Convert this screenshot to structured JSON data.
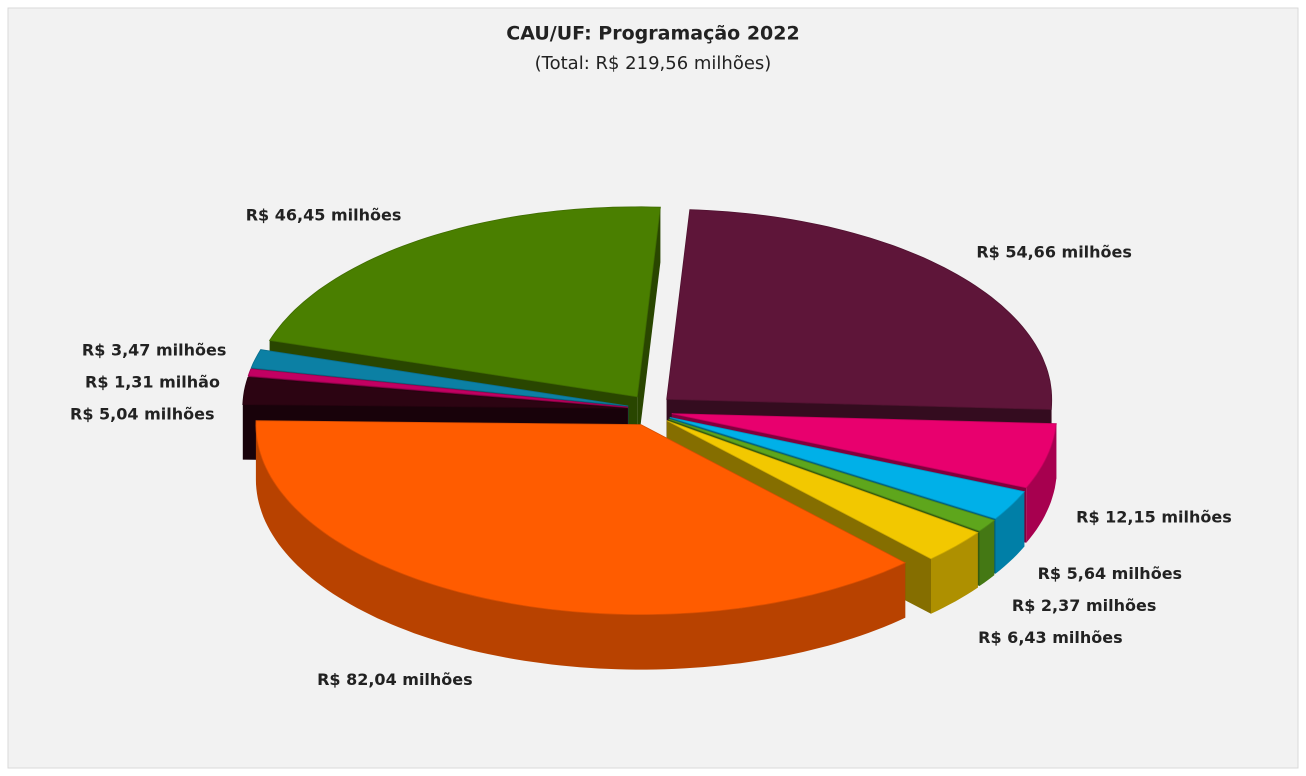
{
  "chart_data": {
    "type": "pie",
    "title": "CAU/UF: Programação 2022",
    "subtitle": "(Total: R$ 219,56 milhões)",
    "values": [
      54.66,
      12.15,
      5.64,
      2.37,
      6.43,
      82.04,
      5.04,
      1.31,
      3.47,
      46.45
    ],
    "value_labels": [
      "R$ 54,66 milhões",
      "R$ 12,15 milhões",
      "R$ 5,64 milhões",
      "R$ 2,37 milhões",
      "R$ 6,43 milhões",
      "R$ 82,04 milhões",
      "R$ 5,04 milhões",
      "R$ 1,31 milhão",
      "R$ 3,47 milhões",
      "R$ 46,45 milhões"
    ],
    "colors": [
      "#5e1539",
      "#e8006e",
      "#00b0e8",
      "#5ea61c",
      "#f2c800",
      "#ff5c00",
      "#2c0412",
      "#c20062",
      "#0c80a4",
      "#4a7f00"
    ]
  }
}
